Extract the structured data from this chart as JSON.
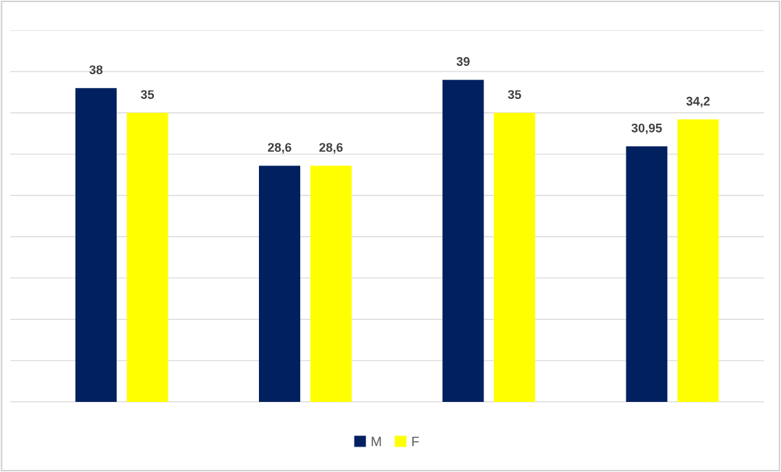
{
  "chart_data": {
    "type": "bar",
    "categories": [
      null,
      null,
      null,
      null
    ],
    "series": [
      {
        "name": "M",
        "color": "#002060",
        "values": [
          38,
          28.6,
          39,
          30.95
        ],
        "value_labels": [
          "38",
          "28,6",
          "39",
          "30,95"
        ]
      },
      {
        "name": "F",
        "color": "#ffff00",
        "values": [
          35,
          28.6,
          35,
          34.2
        ],
        "value_labels": [
          "35",
          "28,6",
          "35",
          "34,2"
        ]
      }
    ],
    "ylim": [
      0,
      45
    ],
    "yticks": [
      {
        "value": 0,
        "label": null
      },
      {
        "value": 5,
        "label": null
      },
      {
        "value": 10,
        "label": null
      },
      {
        "value": 15,
        "label": null
      },
      {
        "value": 20,
        "label": null
      },
      {
        "value": 25,
        "label": null
      },
      {
        "value": 30,
        "label": null
      },
      {
        "value": 35,
        "label": null
      },
      {
        "value": 40,
        "label": null
      },
      {
        "value": 45,
        "label": null
      }
    ],
    "grid": "y",
    "legend": "bottom"
  }
}
